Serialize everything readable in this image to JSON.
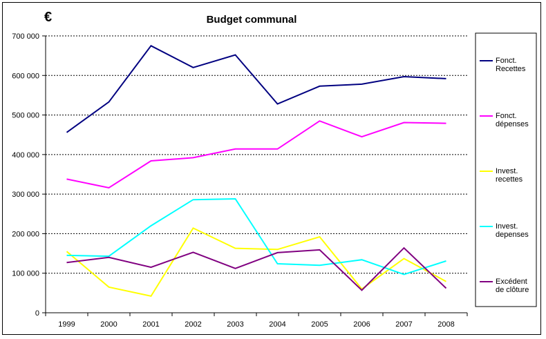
{
  "chart_data": {
    "type": "line",
    "title": "Budget communal",
    "ylabel": "€",
    "xlabel": "",
    "ylim": [
      0,
      700000
    ],
    "yticks": [
      0,
      100000,
      200000,
      300000,
      400000,
      500000,
      600000,
      700000
    ],
    "ytick_labels": [
      "0",
      "100 000",
      "200 000",
      "300 000",
      "400 000",
      "500 000",
      "600 000",
      "700 000"
    ],
    "categories": [
      "1999",
      "2000",
      "2001",
      "2002",
      "2003",
      "2004",
      "2005",
      "2006",
      "2007",
      "2008"
    ],
    "grid": "horizontal dotted",
    "legend_position": "right",
    "series": [
      {
        "name": "Fonct. Recettes",
        "legend_lines": [
          "Fonct.",
          "Recettes"
        ],
        "color": "#000080",
        "values": [
          456000,
          533000,
          675000,
          620000,
          652000,
          528000,
          573000,
          578000,
          597000,
          592000
        ]
      },
      {
        "name": "Fonct. dépenses",
        "legend_lines": [
          "Fonct.",
          "dépenses"
        ],
        "color": "#FF00FF",
        "values": [
          338000,
          316000,
          384000,
          392000,
          414000,
          414000,
          485000,
          445000,
          481000,
          479000
        ]
      },
      {
        "name": "Invest. recettes",
        "legend_lines": [
          "Invest.",
          "recettes"
        ],
        "color": "#FFFF00",
        "values": [
          155000,
          65000,
          42000,
          214000,
          163000,
          160000,
          192000,
          60000,
          137000,
          79000
        ]
      },
      {
        "name": "Invest. depenses",
        "legend_lines": [
          "Invest.",
          "depenses"
        ],
        "color": "#00FFFF",
        "values": [
          145000,
          143000,
          220000,
          286000,
          288000,
          124000,
          120000,
          134000,
          97000,
          131000
        ]
      },
      {
        "name": "Excédent de clôture",
        "legend_lines": [
          "Excédent",
          "de clôture"
        ],
        "color": "#800080",
        "values": [
          127000,
          140000,
          115000,
          153000,
          112000,
          152000,
          159000,
          57000,
          164000,
          62000
        ]
      }
    ]
  }
}
